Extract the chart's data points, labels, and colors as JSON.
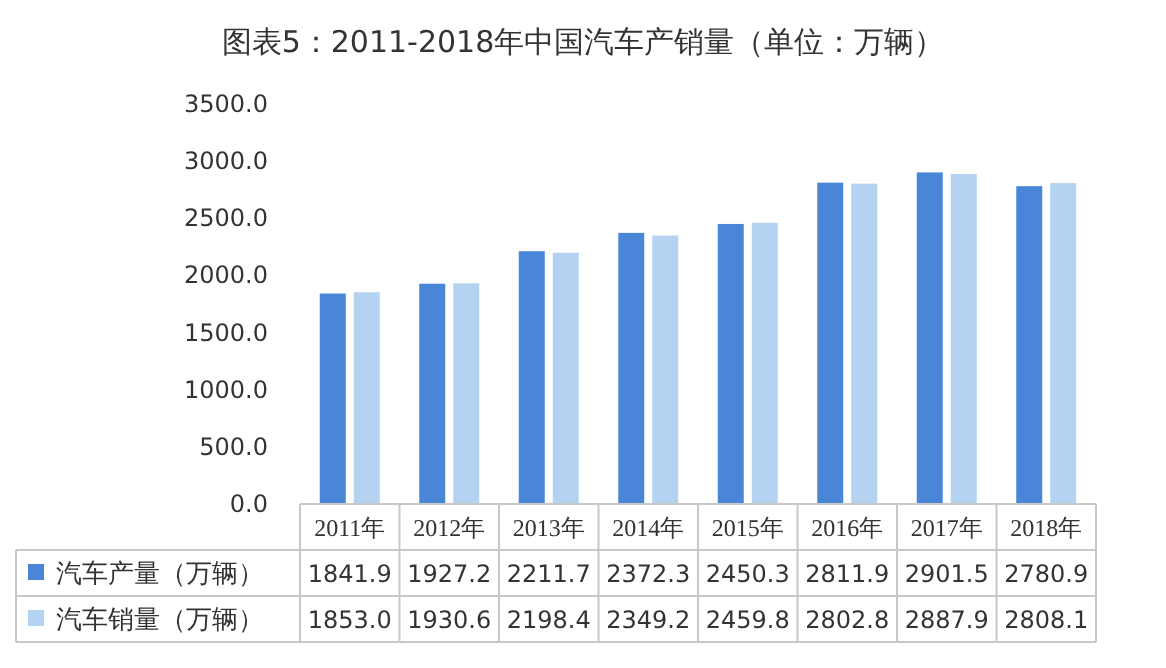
{
  "chart_data": {
    "type": "bar",
    "title": "图表5：2011-2018年中国汽车产销量（单位：万辆）",
    "categories": [
      "2011年",
      "2012年",
      "2013年",
      "2014年",
      "2015年",
      "2016年",
      "2017年",
      "2018年"
    ],
    "series": [
      {
        "name": "汽车产量（万辆）",
        "color": "#4a86d8",
        "values": [
          1841.9,
          1927.2,
          2211.7,
          2372.3,
          2450.3,
          2811.9,
          2901.5,
          2780.9
        ],
        "value_labels": [
          "1841.9",
          "1927.2",
          "2211.7",
          "2372.3",
          "2450.3",
          "2811.9",
          "2901.5",
          "2780.9"
        ]
      },
      {
        "name": "汽车销量（万辆）",
        "color": "#b4d2f2",
        "values": [
          1853,
          1930.6,
          2198.4,
          2349.2,
          2459.8,
          2802.8,
          2887.9,
          2808.1
        ],
        "value_labels": [
          "1853.0",
          "1930.6",
          "2198.4",
          "2349.2",
          "2459.8",
          "2802.8",
          "2887.9",
          "2808.1"
        ]
      }
    ],
    "ylim": [
      0,
      3500
    ],
    "yticks": [
      {
        "value": 0,
        "label": "0.0"
      },
      {
        "value": 500,
        "label": "500.0"
      },
      {
        "value": 1000,
        "label": "1000.0"
      },
      {
        "value": 1500,
        "label": "1500.0"
      },
      {
        "value": 2000,
        "label": "2000.0"
      },
      {
        "value": 2500,
        "label": "2500.0"
      },
      {
        "value": 3000,
        "label": "3000.0"
      },
      {
        "value": 3500,
        "label": "3500.0"
      }
    ],
    "legend": "bottom",
    "grid": false
  }
}
